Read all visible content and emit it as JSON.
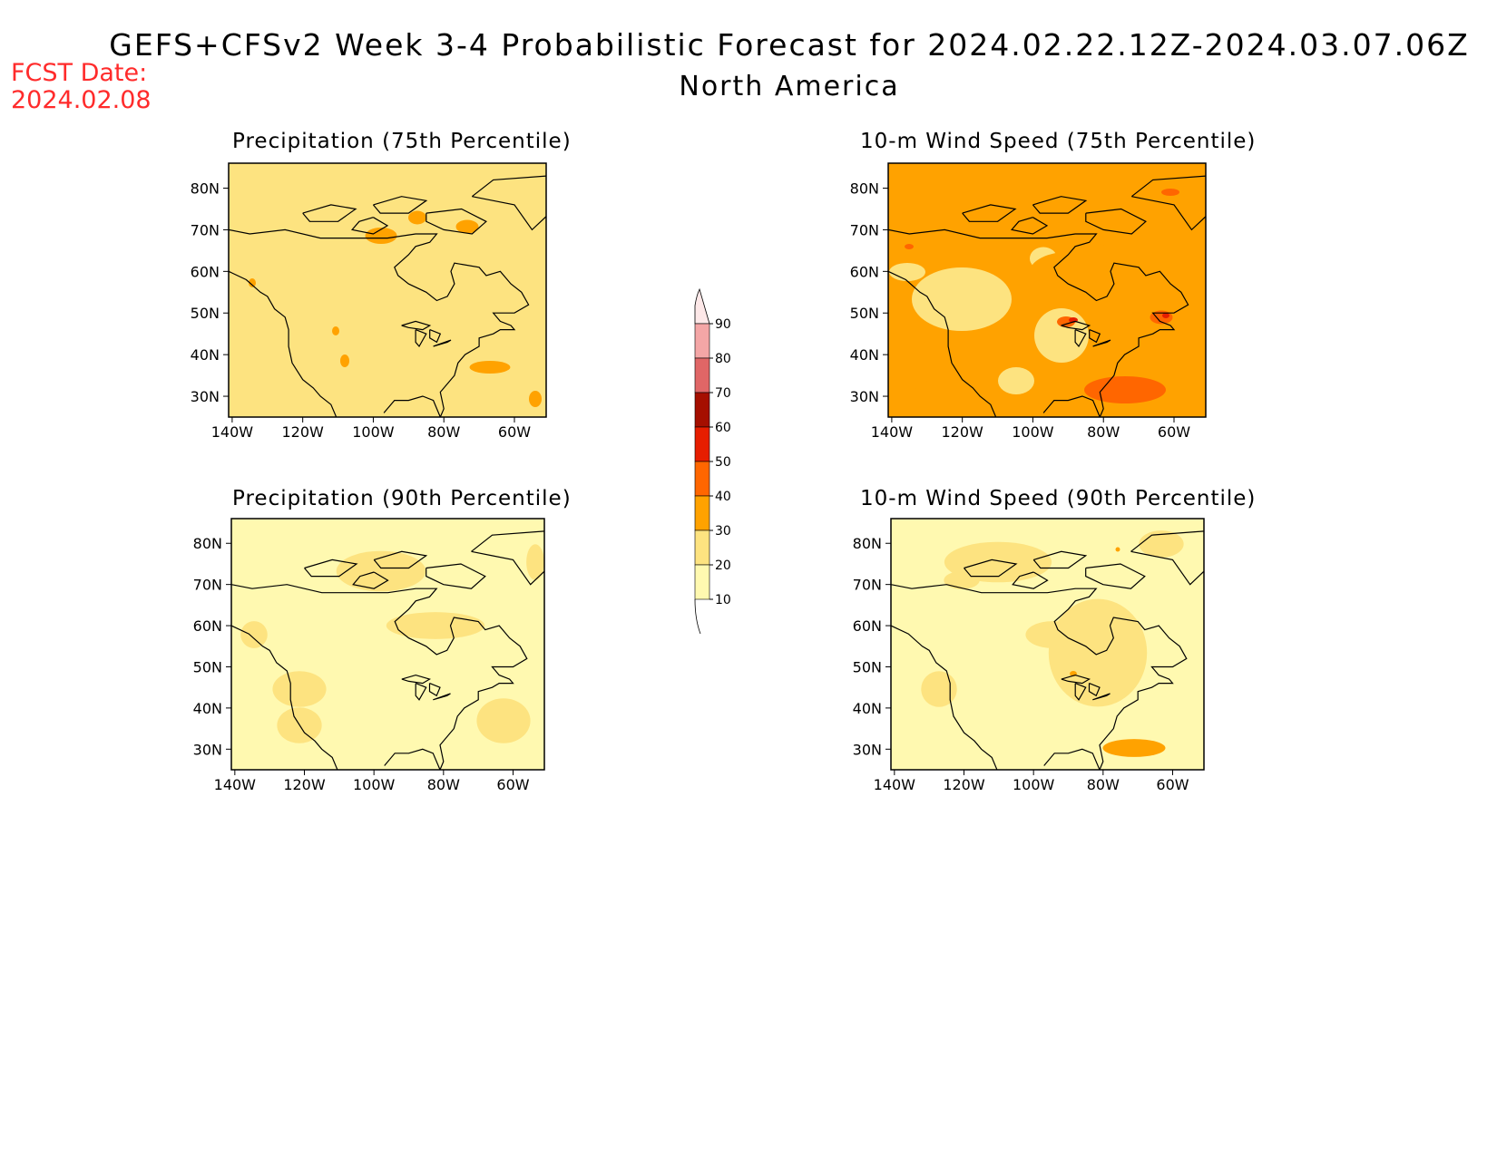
{
  "header": {
    "title": "GEFS+CFSv2 Week 3-4 Probabilistic Forecast for 2024.02.22.12Z-2024.03.07.06Z",
    "subtitle": "North America",
    "fcst_label": "FCST Date:",
    "fcst_date": "2024.02.08"
  },
  "panels": [
    {
      "title": "Precipitation (75th Percentile)",
      "dominant_level": 20
    },
    {
      "title": "10-m Wind Speed (75th Percentile)",
      "dominant_level": 30
    },
    {
      "title": "Precipitation (90th Percentile)",
      "dominant_level": 10
    },
    {
      "title": "10-m Wind Speed (90th Percentile)",
      "dominant_level": 10
    }
  ],
  "axes": {
    "lat_labels": [
      "80N",
      "70N",
      "60N",
      "50N",
      "40N",
      "30N"
    ],
    "lon_labels": [
      "140W",
      "120W",
      "100W",
      "80W",
      "60W"
    ]
  },
  "colorbar": {
    "levels": [
      "10",
      "20",
      "30",
      "40",
      "50",
      "60",
      "70",
      "80",
      "90"
    ],
    "colors": [
      "#fff9b0",
      "#fde380",
      "#ffa200",
      "#ff6600",
      "#e61e00",
      "#a50f00",
      "#e06666",
      "#f4a6a6",
      "#fde8e8"
    ]
  },
  "palette": {
    "fcst_color": "#ff2b2b"
  }
}
